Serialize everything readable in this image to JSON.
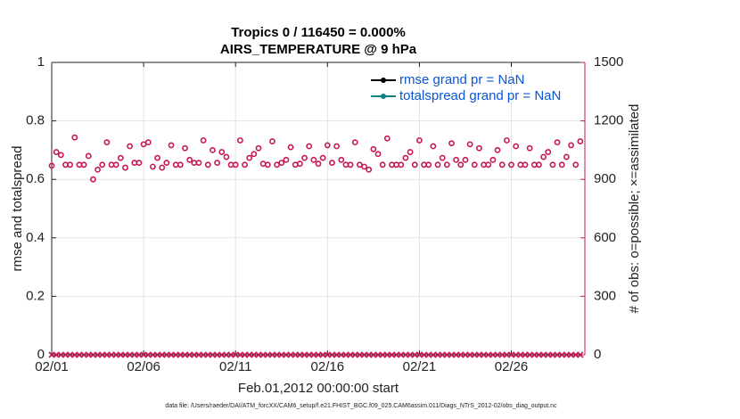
{
  "chart_data": {
    "type": "line",
    "title": "Tropics 0 / 116450 = 0.000%",
    "subtitle": "AIRS_TEMPERATURE @ 9 hPa",
    "xlabel": "Feb.01,2012 00:00:00 start",
    "ylabel": "rmse and totalspread",
    "y2label": "# of obs: o=possible; ×=assimilated",
    "footnote": "data file: /Users/raeder/DAI/ATM_forcXX/CAM6_setup/f.e21.FHIST_BGC.f09_025.CAM6assim.011/Diags_NTrS_2012-02/obs_diag_output.nc",
    "grid": true,
    "legend": "upper right",
    "xlim": [
      0,
      29
    ],
    "xticks": [
      {
        "value": 0,
        "label": "02/01"
      },
      {
        "value": 5,
        "label": "02/06"
      },
      {
        "value": 10,
        "label": "02/11"
      },
      {
        "value": 15,
        "label": "02/16"
      },
      {
        "value": 20,
        "label": "02/21"
      },
      {
        "value": 25,
        "label": "02/26"
      }
    ],
    "ylim": [
      0,
      1
    ],
    "yticks": [
      0,
      0.2,
      0.4,
      0.6,
      0.8,
      1
    ],
    "y2lim": [
      0,
      1500
    ],
    "y2ticks": [
      0,
      300,
      600,
      900,
      1200,
      1500
    ],
    "y2color": "#c8174f",
    "series": [
      {
        "name": "rmse grand pr = NaN",
        "color": "#000000"
      },
      {
        "name": "totalspread grand pr = NaN",
        "color": "#0f8080"
      }
    ],
    "x": [
      0,
      0.25,
      0.5,
      0.75,
      1,
      1.25,
      1.5,
      1.75,
      2,
      2.25,
      2.5,
      2.75,
      3,
      3.25,
      3.5,
      3.75,
      4,
      4.25,
      4.5,
      4.75,
      5,
      5.25,
      5.5,
      5.75,
      6,
      6.25,
      6.5,
      6.75,
      7,
      7.25,
      7.5,
      7.75,
      8,
      8.25,
      8.5,
      8.75,
      9,
      9.25,
      9.5,
      9.75,
      10,
      10.25,
      10.5,
      10.75,
      11,
      11.25,
      11.5,
      11.75,
      12,
      12.25,
      12.5,
      12.75,
      13,
      13.25,
      13.5,
      13.75,
      14,
      14.25,
      14.5,
      14.75,
      15,
      15.25,
      15.5,
      15.75,
      16,
      16.25,
      16.5,
      16.75,
      17,
      17.25,
      17.5,
      17.75,
      18,
      18.25,
      18.5,
      18.75,
      19,
      19.25,
      19.5,
      19.75,
      20,
      20.25,
      20.5,
      20.75,
      21,
      21.25,
      21.5,
      21.75,
      22,
      22.25,
      22.5,
      22.75,
      23,
      23.25,
      23.5,
      23.75,
      24,
      24.25,
      24.5,
      24.75,
      25,
      25.25,
      25.5,
      25.75,
      26,
      26.25,
      26.5,
      26.75,
      27,
      27.25,
      27.5,
      27.75,
      28,
      28.25,
      28.5,
      28.75
    ],
    "obs_possible": {
      "color": "#c8174f",
      "marker": "o",
      "axis": "y2",
      "values": [
        970,
        1040,
        1025,
        975,
        975,
        1115,
        975,
        975,
        1020,
        900,
        950,
        975,
        1090,
        975,
        975,
        1010,
        960,
        1070,
        985,
        985,
        1080,
        1090,
        965,
        1010,
        960,
        985,
        1075,
        975,
        975,
        1060,
        1000,
        985,
        985,
        1100,
        975,
        1050,
        985,
        1040,
        1015,
        975,
        975,
        1100,
        975,
        1010,
        1030,
        1060,
        980,
        975,
        1095,
        975,
        985,
        1000,
        1065,
        975,
        980,
        1010,
        1070,
        1000,
        980,
        1010,
        1075,
        985,
        1070,
        1000,
        975,
        975,
        1090,
        975,
        965,
        950,
        1055,
        1030,
        975,
        1110,
        975,
        975,
        975,
        1010,
        1040,
        975,
        1100,
        975,
        975,
        1070,
        975,
        1010,
        975,
        1085,
        1000,
        975,
        1000,
        1080,
        975,
        1060,
        975,
        975,
        1000,
        1050,
        975,
        1100,
        975,
        1070,
        975,
        975,
        1060,
        975,
        975,
        1015,
        1040,
        975,
        1090,
        975,
        1015,
        1075,
        975,
        1095
      ]
    },
    "obs_assimilated": {
      "color": "#c8174f",
      "marker": "x",
      "axis": "y2",
      "values": [
        0,
        0,
        0,
        0,
        0,
        0,
        0,
        0,
        0,
        0,
        0,
        0,
        0,
        0,
        0,
        0,
        0,
        0,
        0,
        0,
        0,
        0,
        0,
        0,
        0,
        0,
        0,
        0,
        0,
        0,
        0,
        0,
        0,
        0,
        0,
        0,
        0,
        0,
        0,
        0,
        0,
        0,
        0,
        0,
        0,
        0,
        0,
        0,
        0,
        0,
        0,
        0,
        0,
        0,
        0,
        0,
        0,
        0,
        0,
        0,
        0,
        0,
        0,
        0,
        0,
        0,
        0,
        0,
        0,
        0,
        0,
        0,
        0,
        0,
        0,
        0,
        0,
        0,
        0,
        0,
        0,
        0,
        0,
        0,
        0,
        0,
        0,
        0,
        0,
        0,
        0,
        0,
        0,
        0,
        0,
        0,
        0,
        0,
        0,
        0,
        0,
        0,
        0,
        0,
        0,
        0,
        0,
        0,
        0,
        0,
        0,
        0,
        0,
        0,
        0,
        0
      ]
    }
  }
}
